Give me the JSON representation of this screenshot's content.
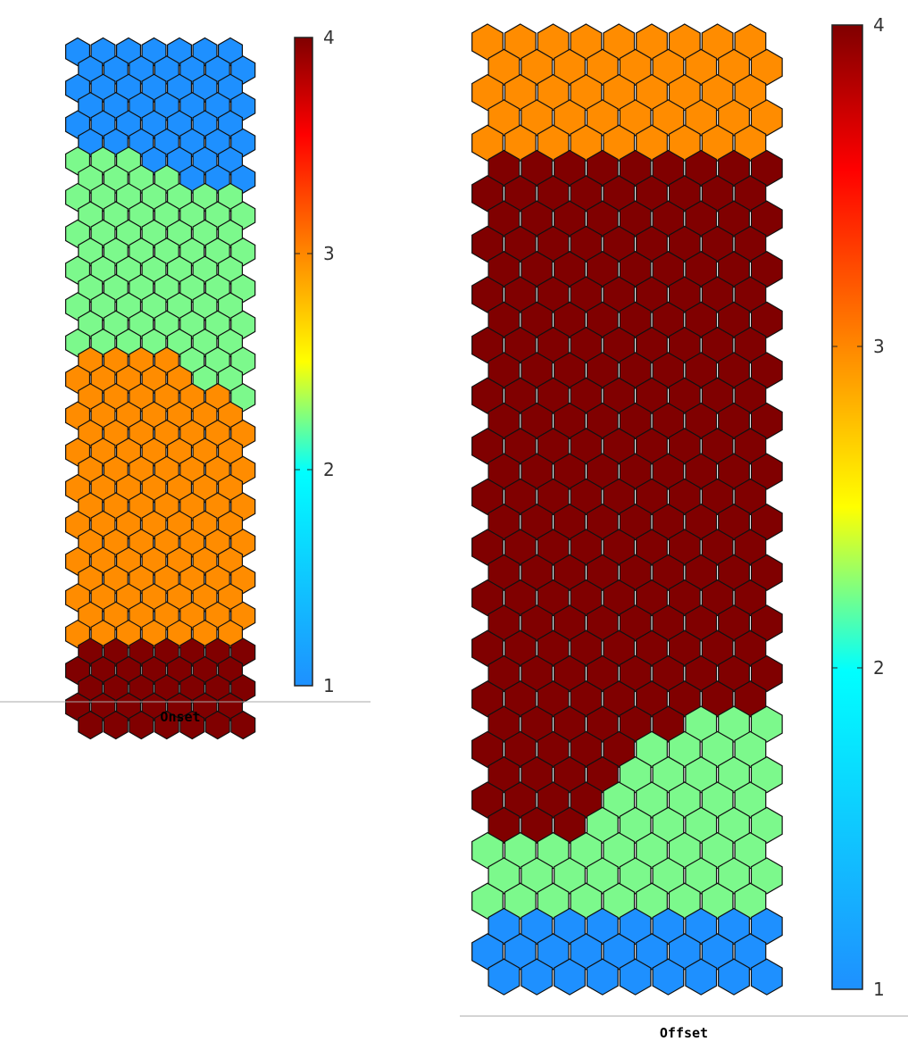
{
  "chart_data": [
    {
      "type": "heatmap",
      "title": "Onset",
      "grid": {
        "rows": 38,
        "cols": 7,
        "tiling": "hexagonal"
      },
      "color_scale": {
        "min": 1,
        "max": 4,
        "ticks": [
          "1",
          "2",
          "3",
          "4"
        ],
        "colormap": "jet"
      },
      "class_colors": {
        "1": "#1e90ff",
        "2": "#7cf98c",
        "3": "#ff8c00",
        "4": "#800000"
      },
      "row_values": [
        "1111111",
        "1111111",
        "1111111",
        "1111111",
        "1111111",
        "1111111",
        "2221111",
        "2222111",
        "2222222",
        "2222222",
        "2222222",
        "2222222",
        "2222222",
        "2222222",
        "2222222",
        "2222222",
        "2222222",
        "3333222",
        "3333322",
        "3333332",
        "3333333",
        "3333333",
        "3333333",
        "3333333",
        "3333333",
        "3333333",
        "3333333",
        "3333333",
        "3333333",
        "3333333",
        "3333333",
        "3333333",
        "3333333",
        "4444444",
        "4444444",
        "4444444",
        "4444444",
        "4444444"
      ]
    },
    {
      "type": "heatmap",
      "title": "Offset",
      "grid": {
        "rows": 38,
        "cols": 9,
        "tiling": "hexagonal"
      },
      "color_scale": {
        "min": 1,
        "max": 4,
        "ticks": [
          "1",
          "2",
          "3",
          "4"
        ],
        "colormap": "jet"
      },
      "class_colors": {
        "1": "#1e90ff",
        "2": "#7cf98c",
        "3": "#ff8c00",
        "4": "#800000"
      },
      "row_values": [
        "333333333",
        "333333333",
        "333333333",
        "333333333",
        "333333333",
        "444444444",
        "444444444",
        "444444444",
        "444444444",
        "444444444",
        "444444444",
        "444444444",
        "444444444",
        "444444444",
        "444444444",
        "444444444",
        "444444444",
        "444444444",
        "444444444",
        "444444444",
        "444444444",
        "444444444",
        "444444444",
        "444444444",
        "444444444",
        "444444444",
        "444444444",
        "444444222",
        "444442222",
        "444422222",
        "444422222",
        "444222222",
        "222222222",
        "222222222",
        "222222222",
        "111111111",
        "111111111",
        "111111111"
      ]
    }
  ]
}
